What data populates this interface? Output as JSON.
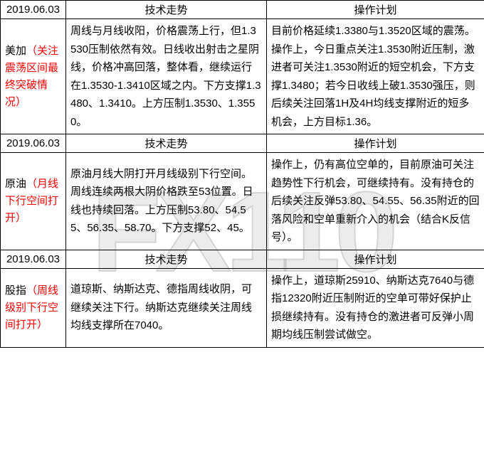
{
  "watermark": "FX110",
  "headers": {
    "date": "2019.06.03",
    "tech": "技术走势",
    "plan": "操作计划"
  },
  "rows": [
    {
      "label_main": "美加",
      "label_note": "（关注震荡区间最终突破情况）",
      "tech": "周线与月线收阳，价格震荡上行，但1.3530压制依然有效。日线收出射击之星阴线，价格冲高回落，整体看，继续运行在1.3530-1.3410区域之内。下方支撑1.3480、1.3410。上方压制1.3530、1.3550。",
      "plan": "目前价格延续1.3380与1.3520区域的震荡。操作上，今日重点关注1.3530附近压制，激进者可关注1.3530附近的短空机会，下方支撑1.3480；若今日收线上破1.3530强压，则后续关注回落1H及4H均线支撑附近的短多机会，上方目标1.36。"
    },
    {
      "label_main": "原油",
      "label_note": "（月线下行空间打开）",
      "tech": "原油月线大阴打开月线级别下行空间。周线连续两根大阴价格跌至53位置。日线也持续回落。上方压制53.80、54.55、56.35、58.70。下方支撑52、45。",
      "plan": "操作上，仍有高位空单的，目前原油可关注趋势性下行机会，可继续持有。没有持仓的后续关注反弹53.80、54.55、56.35附近的回落风险和空单重新介入的机会（结合K反信号）。"
    },
    {
      "label_main": "股指",
      "label_note": "（周线级别下行空间打开）",
      "tech": "道琼斯、纳斯达克、德指周线收阴，可继续关注下行。纳斯达克继续关注周线均线支撑所在7040。",
      "plan": "操作上，道琼斯25910、纳斯达克7640与德指12320附近压制附近的空单可带好保护止损继续持有。没有持仓的激进者可反弹小周期均线压制尝试做空。"
    }
  ],
  "colors": {
    "border": "#000000",
    "text": "#000000",
    "accent": "#ff0000",
    "watermark": "rgba(200,200,200,0.35)",
    "bg": "#ffffff"
  },
  "typography": {
    "body_fontsize": 15,
    "watermark_fontsize": 160,
    "line_height": 1.7
  }
}
